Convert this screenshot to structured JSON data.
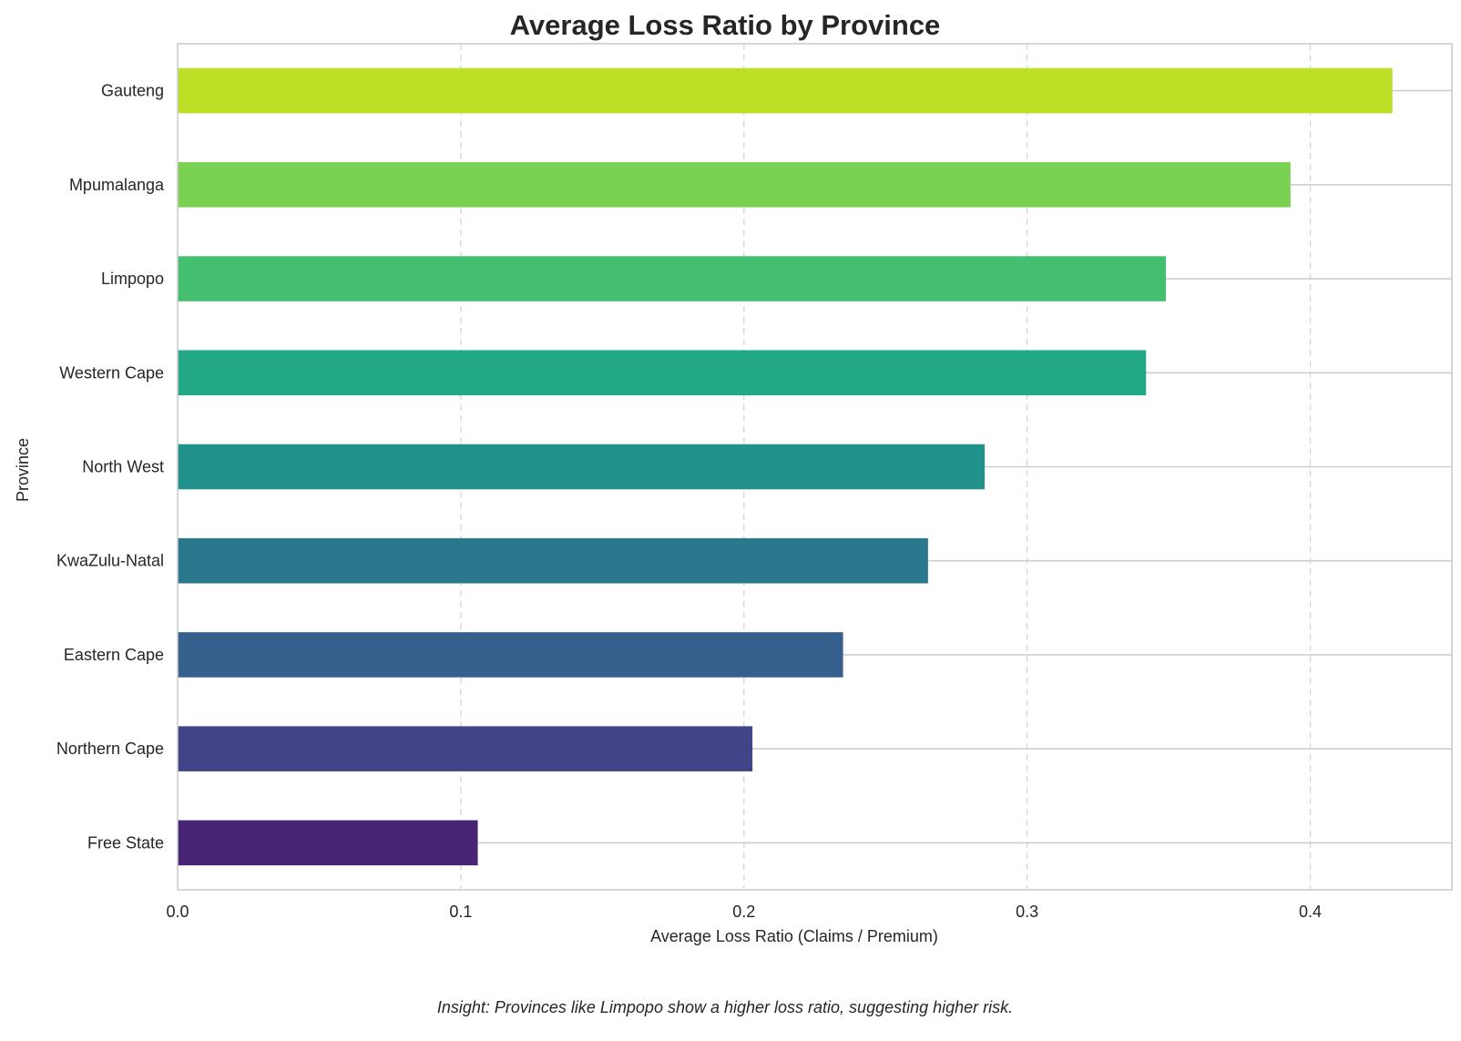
{
  "chart_data": {
    "type": "bar",
    "orientation": "horizontal",
    "title": "Average Loss Ratio by Province",
    "xlabel": "Average Loss Ratio (Claims / Premium)",
    "ylabel": "Province",
    "xlim": [
      0,
      0.45
    ],
    "xticks": [
      "0.0",
      "0.1",
      "0.2",
      "0.3",
      "0.4"
    ],
    "grid": true,
    "categories": [
      "Gauteng",
      "Mpumalanga",
      "Limpopo",
      "Western Cape",
      "North West",
      "KwaZulu-Natal",
      "Eastern Cape",
      "Northern Cape",
      "Free State"
    ],
    "values": [
      0.429,
      0.393,
      0.349,
      0.342,
      0.285,
      0.265,
      0.235,
      0.203,
      0.106
    ],
    "colors": [
      "#bddf26",
      "#7ad151",
      "#44bf70",
      "#22a884",
      "#21918c",
      "#2a788e",
      "#355f8d",
      "#414487",
      "#482475"
    ]
  },
  "annotation": "Insight: Provinces like Limpopo show a higher loss ratio, suggesting higher risk."
}
